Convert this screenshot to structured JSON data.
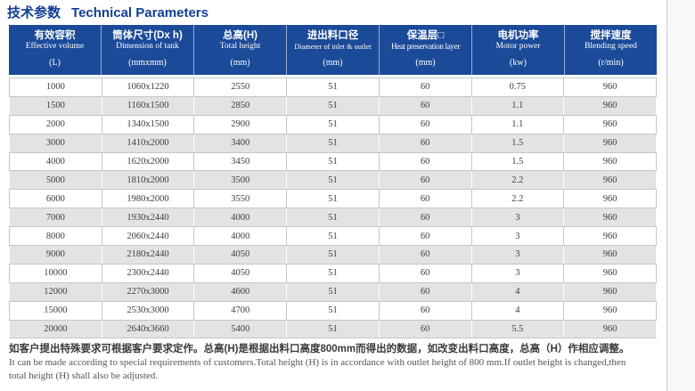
{
  "page": {
    "title_zh": "技术参数",
    "title_en": "Technical Parameters"
  },
  "table": {
    "columns": [
      {
        "zh": "有效容积",
        "en": "Effective volume",
        "unit": "(L)"
      },
      {
        "zh": "筒体尺寸(Dx h)",
        "en": "Dimension of tank",
        "unit": "(mmxmm)"
      },
      {
        "zh": "总高(H)",
        "en": "Total height",
        "unit": "(mm)"
      },
      {
        "zh": "进出料口径",
        "en": "Diameter of inlet & outlet",
        "unit": "(mm)"
      },
      {
        "zh": "保温层□",
        "en": "Heat preservation layer",
        "unit": "(mm)"
      },
      {
        "zh": "电机功率",
        "en": "Motor power",
        "unit": "(kw)"
      },
      {
        "zh": "搅拌速度",
        "en": "Blending speed",
        "unit": "(r/min)"
      }
    ],
    "rows": [
      [
        "1000",
        "1060x1220",
        "2550",
        "51",
        "60",
        "0.75",
        "960"
      ],
      [
        "1500",
        "1160x1500",
        "2850",
        "51",
        "60",
        "1.1",
        "960"
      ],
      [
        "2000",
        "1340x1500",
        "2900",
        "51",
        "60",
        "1.1",
        "960"
      ],
      [
        "3000",
        "1410x2000",
        "3400",
        "51",
        "60",
        "1.5",
        "960"
      ],
      [
        "4000",
        "1620x2000",
        "3450",
        "51",
        "60",
        "1.5",
        "960"
      ],
      [
        "5000",
        "1810x2000",
        "3500",
        "51",
        "60",
        "2.2",
        "960"
      ],
      [
        "6000",
        "1980x2000",
        "3550",
        "51",
        "60",
        "2.2",
        "960"
      ],
      [
        "7000",
        "1930x2440",
        "4000",
        "51",
        "60",
        "3",
        "960"
      ],
      [
        "8000",
        "2060x2440",
        "4000",
        "51",
        "60",
        "3",
        "960"
      ],
      [
        "9000",
        "2180x2440",
        "4050",
        "51",
        "60",
        "3",
        "960"
      ],
      [
        "10000",
        "2300x2440",
        "4050",
        "51",
        "60",
        "3",
        "960"
      ],
      [
        "12000",
        "2270x3000",
        "4600",
        "51",
        "60",
        "4",
        "960"
      ],
      [
        "15000",
        "2530x3000",
        "4700",
        "51",
        "60",
        "4",
        "960"
      ],
      [
        "20000",
        "2640x3660",
        "5400",
        "51",
        "60",
        "5.5",
        "960"
      ]
    ]
  },
  "footnote": {
    "zh": "如客户提出特殊要求可根据客户要求定作。总高(H)是根据出料口高度800mm而得出的数据，如改变出料口高度，总高（H）作相应调整。",
    "en_line1": "It can be made according to special requirements of customers.Total height (H) is in accordance with outlet height of 800 mm.If outlet height is changed,then",
    "en_line2": "total height (H) shall also be adjusted."
  },
  "colors": {
    "header_bg": "#1b4a99",
    "title_text": "#123f92",
    "row_alt_bg": "#e3e3e3",
    "border": "#c6c6c6"
  }
}
